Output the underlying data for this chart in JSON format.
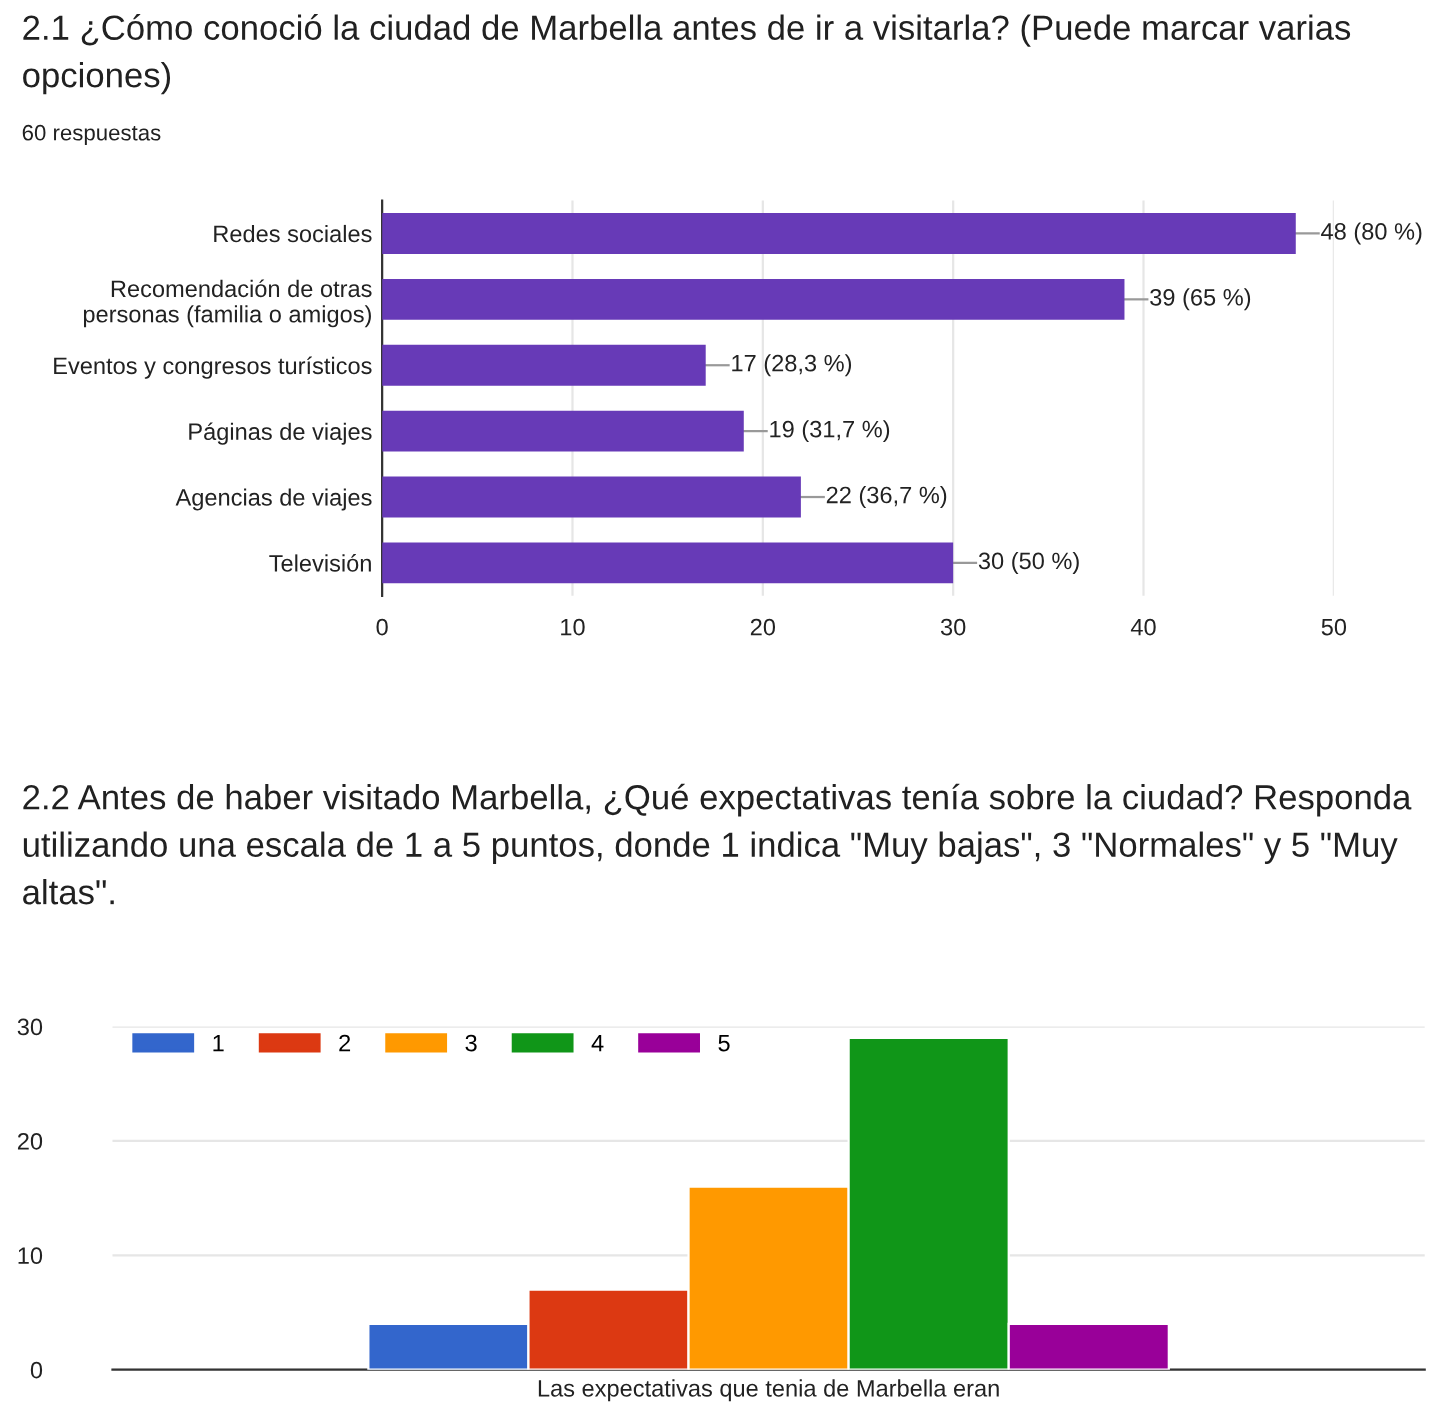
{
  "chart_data": [
    {
      "type": "bar",
      "orientation": "horizontal",
      "title": "2.1 ¿Cómo conoció la ciudad de Marbella antes de ir a visitarla? (Puede marcar varias opciones)",
      "subtitle": "60 respuestas",
      "categories": [
        "Redes sociales",
        "Recomendación de otras\npersonas (familia o amigos)",
        "Eventos y congresos turísticos",
        "Páginas de viajes",
        "Agencias de viajes",
        "Televisión"
      ],
      "values": [
        48,
        39,
        17,
        19,
        22,
        30
      ],
      "value_labels": [
        "48 (80 %)",
        "39 (65 %)",
        "17 (28,3 %)",
        "19 (31,7 %)",
        "22 (36,7 %)",
        "30 (50 %)"
      ],
      "color": "#673ab7",
      "xlim": [
        0,
        50
      ],
      "xticks": [
        0,
        10,
        20,
        30,
        40,
        50
      ],
      "grid": "x"
    },
    {
      "type": "bar",
      "title": "2.2 Antes de haber visitado Marbella, ¿Qué expectativas tenía sobre la ciudad? Responda utilizando una escala de 1 a 5 puntos, donde 1 indica \"Muy bajas\", 3 \"Normales\" y 5 \"Muy altas\".",
      "categories": [
        "Las expectativas que tenia de Marbella eran"
      ],
      "series": [
        {
          "name": "1",
          "color": "#3366cc",
          "values": [
            4
          ]
        },
        {
          "name": "2",
          "color": "#dc3912",
          "values": [
            7
          ]
        },
        {
          "name": "3",
          "color": "#ff9900",
          "values": [
            16
          ]
        },
        {
          "name": "4",
          "color": "#109618",
          "values": [
            29
          ]
        },
        {
          "name": "5",
          "color": "#990099",
          "values": [
            4
          ]
        }
      ],
      "ylim": [
        0,
        30
      ],
      "yticks": [
        0,
        10,
        20,
        30
      ],
      "grid": "y",
      "legend": "top left"
    }
  ]
}
